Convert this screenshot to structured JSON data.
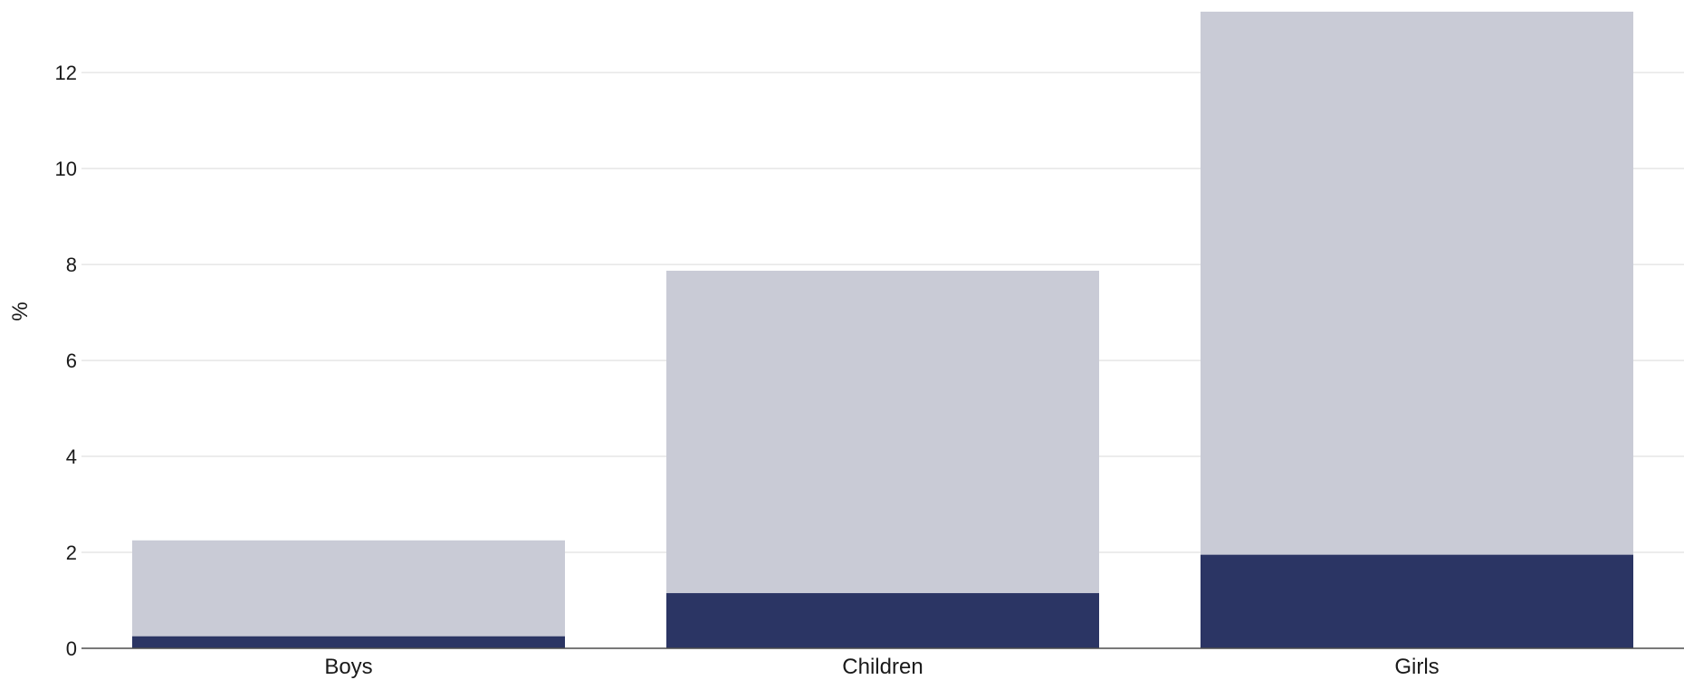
{
  "chart_data": {
    "type": "bar",
    "stacked": false,
    "categories": [
      "Boys",
      "Children",
      "Girls"
    ],
    "series": [
      {
        "values": [
          2.25,
          7.87,
          13.27
        ],
        "color": "#c9cbd6"
      },
      {
        "values": [
          0.25,
          1.15,
          1.95
        ],
        "color": "#2b3564"
      }
    ],
    "ylabel": "%",
    "yticks": [
      0,
      2,
      4,
      6,
      8,
      10,
      12
    ],
    "ylim": [
      0,
      13.4
    ],
    "grid": true
  }
}
